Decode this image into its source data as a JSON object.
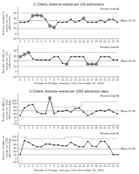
{
  "chart_data": [
    {
      "type": "line",
      "title": "C-Charts: Adverse events per 100 admissions",
      "ylabel": "Number of adverse events per 100 admissions",
      "x": [
        0,
        1,
        2,
        3,
        4,
        5,
        6,
        7,
        8,
        9,
        10,
        11,
        12,
        13,
        14,
        15,
        16,
        17,
        18,
        19,
        20,
        21,
        22,
        23
      ],
      "xlim": [
        -0.5,
        23.5
      ],
      "xticks": [
        0,
        1,
        2,
        3,
        4,
        5,
        6,
        7,
        8,
        9,
        10,
        11,
        12,
        13,
        14,
        15,
        16,
        17,
        18,
        19,
        20,
        21,
        22,
        23
      ],
      "ylim": [
        -10,
        52
      ],
      "yticks": [
        -10,
        0,
        10,
        20,
        30,
        40
      ],
      "grid": false,
      "series": [
        {
          "type": "step",
          "color": "#aaaaaa",
          "values": [
            40,
            40,
            40,
            40,
            40,
            40,
            40,
            40,
            40,
            40,
            40,
            40,
            40,
            40,
            40,
            40,
            40,
            40,
            40,
            40,
            40,
            40,
            40,
            40
          ]
        },
        {
          "type": "line",
          "color": "#000000",
          "marker": "square",
          "values": [
            22,
            22,
            24,
            35,
            36,
            35,
            28,
            15,
            12,
            22,
            22,
            22,
            28,
            22,
            25,
            30,
            22,
            22,
            22,
            26,
            22,
            28,
            28,
            22
          ]
        },
        {
          "type": "scatter",
          "color": "#000000",
          "marker": "circle",
          "line_style": "none",
          "values": [
            null,
            null,
            null,
            35,
            36,
            35,
            null,
            15,
            12,
            null,
            null,
            null,
            null,
            null,
            null,
            30,
            null,
            null,
            null,
            null,
            null,
            null,
            null,
            null
          ]
        }
      ],
      "hlines": [
        {
          "value": 10,
          "color": "#aaaaaa"
        },
        {
          "value": 25.33,
          "color": "#888888",
          "label": "Mean 25.33"
        }
      ],
      "annotations": [
        "Review team A"
      ]
    },
    {
      "type": "line",
      "ylabel": "Number of adverse events per 100 admissions",
      "xlabel": "Periods of 14 days January 1 thru December 31, 2010",
      "x": [
        0,
        1,
        2,
        3,
        4,
        5,
        6,
        7,
        8,
        9,
        10,
        11,
        12,
        13,
        14,
        15,
        16,
        17,
        18,
        19,
        20,
        21,
        22,
        23
      ],
      "xlim": [
        -0.5,
        23.5
      ],
      "xticks": [
        0,
        1,
        2,
        3,
        4,
        5,
        6,
        7,
        8,
        9,
        10,
        11,
        12,
        13,
        14,
        15,
        16,
        17,
        18,
        19,
        20,
        21,
        22,
        23
      ],
      "ylim": [
        -10,
        50
      ],
      "yticks": [
        -10,
        0,
        10,
        20,
        30,
        40
      ],
      "grid": false,
      "series": [
        {
          "type": "step",
          "color": "#aaaaaa",
          "values": [
            36,
            36,
            36,
            36,
            36,
            36,
            36,
            36,
            36,
            36,
            36,
            36,
            36,
            36,
            36,
            36,
            36,
            36,
            36,
            36,
            36,
            36,
            36,
            36
          ]
        },
        {
          "type": "line",
          "color": "#000000",
          "marker": "square",
          "values": [
            28,
            32,
            36,
            24,
            22,
            22,
            22,
            22,
            28,
            28,
            16,
            14,
            28,
            28,
            28,
            28,
            14,
            14,
            14,
            28,
            28,
            28,
            22,
            22
          ]
        },
        {
          "type": "scatter",
          "color": "#000000",
          "marker": "circle",
          "line_style": "none",
          "values": [
            28,
            32,
            36,
            null,
            null,
            null,
            null,
            null,
            null,
            null,
            null,
            14,
            null,
            null,
            null,
            null,
            14,
            14,
            14,
            null,
            null,
            null,
            null,
            null
          ]
        }
      ],
      "hlines": [
        {
          "value": 10,
          "color": "#aaaaaa"
        },
        {
          "value": 20.43,
          "color": "#888888",
          "label": "Mean 20.43"
        }
      ],
      "annotations": [
        "Review team B"
      ]
    },
    {
      "type": "line",
      "title": "U-Charts: Adverse events per 1000 admission days",
      "ylabel": "Number of adverse events per 1000 admission days",
      "x": [
        0,
        1,
        2,
        3,
        4,
        5,
        6,
        7,
        8,
        9,
        10,
        11,
        12,
        13,
        14,
        15,
        16,
        17,
        18,
        19,
        20,
        21,
        22,
        23
      ],
      "xlim": [
        -0.5,
        23.5
      ],
      "xticks": [
        0,
        1,
        2,
        3,
        4,
        5,
        6,
        7,
        8,
        9,
        10,
        11,
        12,
        13,
        14,
        15,
        16,
        17,
        18,
        19,
        20,
        21,
        22,
        23
      ],
      "ylim": [
        -30,
        160
      ],
      "yticks": [
        -20,
        0,
        20,
        40,
        60,
        80,
        100,
        120
      ],
      "grid": false,
      "series": [
        {
          "type": "step",
          "color": "#aaaaaa",
          "values": [
            110,
            110,
            110,
            110,
            110,
            110,
            110,
            110,
            80,
            80,
            80,
            80,
            80,
            80,
            80,
            110,
            110,
            110,
            110,
            110,
            110,
            110,
            110,
            110
          ]
        },
        {
          "type": "line",
          "color": "#000000",
          "marker": "square",
          "values": [
            30,
            75,
            90,
            95,
            50,
            40,
            40,
            135,
            40,
            55,
            55,
            60,
            50,
            70,
            75,
            50,
            30,
            40,
            55,
            60,
            55,
            65,
            50,
            40
          ]
        },
        {
          "type": "scatter",
          "color": "#000000",
          "marker": "circle",
          "line_style": "none",
          "values": [
            null,
            null,
            null,
            null,
            null,
            null,
            null,
            135,
            null,
            null,
            null,
            null,
            null,
            null,
            null,
            null,
            null,
            null,
            null,
            null,
            null,
            null,
            null,
            null
          ]
        }
      ],
      "hlines": [
        {
          "value": 20,
          "color": "#aaaaaa"
        },
        {
          "value": 57.96,
          "color": "#888888",
          "label": "Mean 57.96"
        }
      ],
      "annotations": [
        "Review team A"
      ]
    },
    {
      "type": "line",
      "ylabel": "Number of adverse events per 1000 admission days",
      "xlabel": "Periods of 14 days January 1 thru December 31, 2010",
      "x": [
        0,
        1,
        2,
        3,
        4,
        5,
        6,
        7,
        8,
        9,
        10,
        11,
        12,
        13,
        14,
        15,
        16,
        17,
        18,
        19,
        20,
        21,
        22,
        23
      ],
      "xlim": [
        -0.5,
        23.5
      ],
      "xticks": [
        0,
        1,
        2,
        3,
        4,
        5,
        6,
        7,
        8,
        9,
        10,
        11,
        12,
        13,
        14,
        15,
        16,
        17,
        18,
        19,
        20,
        21,
        22,
        23
      ],
      "ylim": [
        -30,
        150
      ],
      "yticks": [
        -20,
        0,
        20,
        40,
        60,
        80,
        100,
        120
      ],
      "grid": false,
      "series": [
        {
          "type": "step",
          "color": "#aaaaaa",
          "values": [
            120,
            120,
            110,
            110,
            110,
            110,
            110,
            110,
            110,
            110,
            110,
            120,
            120,
            120,
            120,
            110,
            110,
            110,
            110,
            110,
            110,
            110,
            110,
            110
          ]
        },
        {
          "type": "line",
          "color": "#000000",
          "marker": "square",
          "values": [
            20,
            100,
            90,
            75,
            65,
            65,
            80,
            80,
            75,
            75,
            70,
            70,
            90,
            75,
            65,
            65,
            95,
            70,
            65,
            95,
            95,
            65,
            20,
            20
          ]
        }
      ],
      "hlines": [
        {
          "value": 20,
          "color": "#aaaaaa"
        },
        {
          "value": 52.65,
          "color": "#888888",
          "label": "Mean 52.65"
        }
      ],
      "annotations": [
        "Review team B"
      ]
    }
  ]
}
